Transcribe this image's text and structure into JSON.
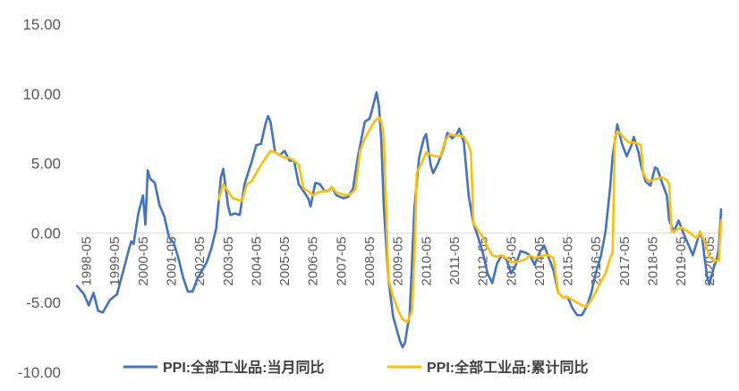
{
  "chart_data": {
    "type": "line",
    "title": "",
    "xlabel": "",
    "ylabel": "",
    "ylim": [
      -10,
      15
    ],
    "yticks": [
      15,
      10,
      5,
      0,
      -5,
      -10
    ],
    "ytick_labels": [
      "15.00",
      "10.00",
      "5.00",
      "0.00",
      "-5.00",
      "-10.00"
    ],
    "x_tick_labels": [
      "1998-05",
      "1999-05",
      "2000-05",
      "2001-05",
      "2002-05",
      "2003-05",
      "2004-05",
      "2005-05",
      "2006-05",
      "2007-05",
      "2008-05",
      "2009-05",
      "2010-05",
      "2011-05",
      "2012-05",
      "2013-05",
      "2014-05",
      "2015-05",
      "2016-05",
      "2017-05",
      "2018-05",
      "2019-05",
      "2020-05"
    ],
    "x_start": "1998-01",
    "x_end": "2020-10",
    "grid": "none",
    "legend_position": "bottom",
    "series": [
      {
        "name": "PPI:全部工业品:当月同比",
        "color": "#4472C4",
        "points": [
          [
            "1998-01",
            -3.8
          ],
          [
            "1998-04",
            -4.4
          ],
          [
            "1998-06",
            -5.2
          ],
          [
            "1998-08",
            -4.3
          ],
          [
            "1998-10",
            -5.6
          ],
          [
            "1998-12",
            -5.7
          ],
          [
            "1999-03",
            -4.8
          ],
          [
            "1999-06",
            -4.4
          ],
          [
            "1999-09",
            -2.5
          ],
          [
            "1999-11",
            -1.2
          ],
          [
            "1999-12",
            -0.6
          ],
          [
            "2000-01",
            -0.8
          ],
          [
            "2000-03",
            1.4
          ],
          [
            "2000-05",
            2.7
          ],
          [
            "2000-06",
            0.6
          ],
          [
            "2000-07",
            4.5
          ],
          [
            "2000-08",
            3.9
          ],
          [
            "2000-10",
            3.6
          ],
          [
            "2000-12",
            2.0
          ],
          [
            "2001-02",
            1.2
          ],
          [
            "2001-04",
            -0.3
          ],
          [
            "2001-06",
            -0.7
          ],
          [
            "2001-08",
            -1.8
          ],
          [
            "2001-10",
            -3.2
          ],
          [
            "2001-12",
            -4.2
          ],
          [
            "2002-02",
            -4.2
          ],
          [
            "2002-04",
            -3.3
          ],
          [
            "2002-06",
            -2.7
          ],
          [
            "2002-08",
            -2.1
          ],
          [
            "2002-10",
            -1.1
          ],
          [
            "2002-12",
            0.3
          ],
          [
            "2003-02",
            4.0
          ],
          [
            "2003-03",
            4.6
          ],
          [
            "2003-05",
            2.0
          ],
          [
            "2003-06",
            1.3
          ],
          [
            "2003-08",
            1.4
          ],
          [
            "2003-10",
            1.3
          ],
          [
            "2003-12",
            3.5
          ],
          [
            "2004-03",
            5.1
          ],
          [
            "2004-05",
            6.3
          ],
          [
            "2004-07",
            6.4
          ],
          [
            "2004-09",
            7.9
          ],
          [
            "2004-10",
            8.4
          ],
          [
            "2004-11",
            8.0
          ],
          [
            "2005-01",
            5.8
          ],
          [
            "2005-03",
            5.6
          ],
          [
            "2005-05",
            5.9
          ],
          [
            "2005-07",
            5.2
          ],
          [
            "2005-09",
            5.2
          ],
          [
            "2005-11",
            3.5
          ],
          [
            "2006-01",
            3.0
          ],
          [
            "2006-03",
            2.5
          ],
          [
            "2006-04",
            1.9
          ],
          [
            "2006-06",
            3.6
          ],
          [
            "2006-08",
            3.5
          ],
          [
            "2006-10",
            3.0
          ],
          [
            "2006-12",
            3.1
          ],
          [
            "2007-01",
            3.3
          ],
          [
            "2007-03",
            2.7
          ],
          [
            "2007-06",
            2.5
          ],
          [
            "2007-08",
            2.6
          ],
          [
            "2007-10",
            3.2
          ],
          [
            "2007-12",
            5.4
          ],
          [
            "2008-03",
            8.0
          ],
          [
            "2008-05",
            8.2
          ],
          [
            "2008-06",
            8.8
          ],
          [
            "2008-08",
            10.1
          ],
          [
            "2008-09",
            9.1
          ],
          [
            "2008-10",
            6.6
          ],
          [
            "2008-11",
            2.0
          ],
          [
            "2009-01",
            -3.3
          ],
          [
            "2009-03",
            -6.0
          ],
          [
            "2009-06",
            -7.8
          ],
          [
            "2009-07",
            -8.2
          ],
          [
            "2009-08",
            -7.9
          ],
          [
            "2009-10",
            -5.8
          ],
          [
            "2009-11",
            -2.1
          ],
          [
            "2009-12",
            1.7
          ],
          [
            "2010-02",
            5.4
          ],
          [
            "2010-04",
            6.8
          ],
          [
            "2010-05",
            7.1
          ],
          [
            "2010-07",
            4.8
          ],
          [
            "2010-08",
            4.3
          ],
          [
            "2010-10",
            5.0
          ],
          [
            "2010-12",
            5.9
          ],
          [
            "2011-02",
            7.2
          ],
          [
            "2011-04",
            6.8
          ],
          [
            "2011-06",
            7.1
          ],
          [
            "2011-07",
            7.5
          ],
          [
            "2011-09",
            6.5
          ],
          [
            "2011-11",
            2.7
          ],
          [
            "2012-01",
            0.7
          ],
          [
            "2012-03",
            -0.3
          ],
          [
            "2012-05",
            -1.4
          ],
          [
            "2012-07",
            -2.9
          ],
          [
            "2012-09",
            -3.6
          ],
          [
            "2012-11",
            -2.2
          ],
          [
            "2013-01",
            -1.6
          ],
          [
            "2013-03",
            -1.9
          ],
          [
            "2013-05",
            -2.9
          ],
          [
            "2013-07",
            -2.3
          ],
          [
            "2013-09",
            -1.3
          ],
          [
            "2013-11",
            -1.4
          ],
          [
            "2014-01",
            -1.6
          ],
          [
            "2014-03",
            -2.3
          ],
          [
            "2014-05",
            -1.4
          ],
          [
            "2014-07",
            -0.9
          ],
          [
            "2014-09",
            -1.8
          ],
          [
            "2014-11",
            -2.7
          ],
          [
            "2015-01",
            -4.3
          ],
          [
            "2015-03",
            -4.6
          ],
          [
            "2015-05",
            -4.6
          ],
          [
            "2015-07",
            -5.4
          ],
          [
            "2015-09",
            -5.9
          ],
          [
            "2015-11",
            -5.9
          ],
          [
            "2016-01",
            -5.3
          ],
          [
            "2016-03",
            -4.3
          ],
          [
            "2016-05",
            -2.8
          ],
          [
            "2016-07",
            -1.7
          ],
          [
            "2016-09",
            0.1
          ],
          [
            "2016-11",
            3.3
          ],
          [
            "2016-12",
            5.5
          ],
          [
            "2017-02",
            7.8
          ],
          [
            "2017-04",
            6.4
          ],
          [
            "2017-06",
            5.5
          ],
          [
            "2017-08",
            6.3
          ],
          [
            "2017-09",
            6.9
          ],
          [
            "2017-11",
            5.8
          ],
          [
            "2017-12",
            4.9
          ],
          [
            "2018-02",
            3.7
          ],
          [
            "2018-04",
            3.4
          ],
          [
            "2018-06",
            4.7
          ],
          [
            "2018-07",
            4.6
          ],
          [
            "2018-09",
            3.6
          ],
          [
            "2018-11",
            2.7
          ],
          [
            "2018-12",
            0.9
          ],
          [
            "2019-02",
            0.1
          ],
          [
            "2019-04",
            0.9
          ],
          [
            "2019-06",
            0.0
          ],
          [
            "2019-08",
            -0.8
          ],
          [
            "2019-10",
            -1.6
          ],
          [
            "2019-12",
            -0.5
          ],
          [
            "2020-01",
            0.1
          ],
          [
            "2020-02",
            -0.4
          ],
          [
            "2020-04",
            -3.1
          ],
          [
            "2020-05",
            -3.7
          ],
          [
            "2020-07",
            -2.4
          ],
          [
            "2020-08",
            -2.0
          ],
          [
            "2020-09",
            -1.1
          ],
          [
            "2020-10",
            1.7
          ]
        ]
      },
      {
        "name": "PPI:全部工业品:累计同比",
        "color": "#FFC000",
        "points": [
          [
            "2003-01",
            2.4
          ],
          [
            "2003-03",
            3.5
          ],
          [
            "2003-05",
            3.0
          ],
          [
            "2003-07",
            2.5
          ],
          [
            "2003-09",
            2.4
          ],
          [
            "2003-11",
            2.3
          ],
          [
            "2004-01",
            3.5
          ],
          [
            "2004-03",
            3.7
          ],
          [
            "2004-05",
            4.3
          ],
          [
            "2004-07",
            4.9
          ],
          [
            "2004-09",
            5.4
          ],
          [
            "2004-11",
            5.9
          ],
          [
            "2005-01",
            5.8
          ],
          [
            "2005-03",
            5.6
          ],
          [
            "2005-05",
            5.4
          ],
          [
            "2005-07",
            5.4
          ],
          [
            "2005-09",
            5.2
          ],
          [
            "2005-11",
            4.9
          ],
          [
            "2006-01",
            3.2
          ],
          [
            "2006-03",
            3.0
          ],
          [
            "2006-05",
            2.7
          ],
          [
            "2006-07",
            2.9
          ],
          [
            "2006-09",
            3.0
          ],
          [
            "2006-11",
            3.0
          ],
          [
            "2007-01",
            3.3
          ],
          [
            "2007-03",
            2.9
          ],
          [
            "2007-05",
            2.8
          ],
          [
            "2007-07",
            2.7
          ],
          [
            "2007-09",
            2.8
          ],
          [
            "2007-11",
            3.1
          ],
          [
            "2008-01",
            5.9
          ],
          [
            "2008-03",
            6.8
          ],
          [
            "2008-05",
            7.4
          ],
          [
            "2008-07",
            8.0
          ],
          [
            "2008-09",
            8.3
          ],
          [
            "2008-10",
            8.0
          ],
          [
            "2008-11",
            6.9
          ],
          [
            "2008-12",
            2.0
          ],
          [
            "2009-01",
            -3.3
          ],
          [
            "2009-03",
            -4.6
          ],
          [
            "2009-05",
            -5.5
          ],
          [
            "2009-07",
            -6.2
          ],
          [
            "2009-09",
            -6.4
          ],
          [
            "2009-11",
            -5.6
          ],
          [
            "2009-12",
            -2.0
          ],
          [
            "2010-01",
            4.3
          ],
          [
            "2010-03",
            5.0
          ],
          [
            "2010-05",
            5.8
          ],
          [
            "2010-07",
            5.6
          ],
          [
            "2010-09",
            5.5
          ],
          [
            "2010-11",
            5.5
          ],
          [
            "2011-01",
            6.6
          ],
          [
            "2011-03",
            7.1
          ],
          [
            "2011-05",
            7.0
          ],
          [
            "2011-07",
            7.0
          ],
          [
            "2011-09",
            6.9
          ],
          [
            "2011-11",
            6.3
          ],
          [
            "2011-12",
            5.8
          ],
          [
            "2012-01",
            0.7
          ],
          [
            "2012-03",
            0.2
          ],
          [
            "2012-05",
            -0.3
          ],
          [
            "2012-07",
            -1.0
          ],
          [
            "2012-09",
            -1.6
          ],
          [
            "2012-11",
            -1.7
          ],
          [
            "2013-01",
            -1.6
          ],
          [
            "2013-03",
            -1.8
          ],
          [
            "2013-05",
            -2.1
          ],
          [
            "2013-07",
            -2.1
          ],
          [
            "2013-09",
            -2.0
          ],
          [
            "2013-11",
            -1.9
          ],
          [
            "2014-01",
            -1.6
          ],
          [
            "2014-03",
            -1.8
          ],
          [
            "2014-05",
            -1.7
          ],
          [
            "2014-07",
            -1.6
          ],
          [
            "2014-09",
            -1.6
          ],
          [
            "2014-11",
            -1.8
          ],
          [
            "2015-01",
            -4.3
          ],
          [
            "2015-03",
            -4.6
          ],
          [
            "2015-05",
            -4.6
          ],
          [
            "2015-07",
            -4.8
          ],
          [
            "2015-09",
            -5.0
          ],
          [
            "2015-11",
            -5.2
          ],
          [
            "2016-01",
            -5.3
          ],
          [
            "2016-03",
            -4.8
          ],
          [
            "2016-05",
            -4.2
          ],
          [
            "2016-07",
            -3.5
          ],
          [
            "2016-09",
            -2.9
          ],
          [
            "2016-11",
            -1.8
          ],
          [
            "2016-12",
            -1.4
          ],
          [
            "2017-01",
            6.9
          ],
          [
            "2017-02",
            7.3
          ],
          [
            "2017-03",
            7.2
          ],
          [
            "2017-05",
            6.8
          ],
          [
            "2017-07",
            6.5
          ],
          [
            "2017-09",
            6.5
          ],
          [
            "2017-11",
            6.4
          ],
          [
            "2017-12",
            6.3
          ],
          [
            "2018-01",
            4.3
          ],
          [
            "2018-03",
            3.7
          ],
          [
            "2018-05",
            3.8
          ],
          [
            "2018-07",
            3.9
          ],
          [
            "2018-09",
            4.0
          ],
          [
            "2018-11",
            3.8
          ],
          [
            "2018-12",
            3.5
          ],
          [
            "2019-01",
            0.1
          ],
          [
            "2019-03",
            0.2
          ],
          [
            "2019-05",
            0.4
          ],
          [
            "2019-07",
            0.2
          ],
          [
            "2019-09",
            0.0
          ],
          [
            "2019-11",
            -0.3
          ],
          [
            "2019-12",
            -0.3
          ],
          [
            "2020-01",
            0.1
          ],
          [
            "2020-03",
            -0.6
          ],
          [
            "2020-05",
            -1.7
          ],
          [
            "2020-07",
            -2.0
          ],
          [
            "2020-09",
            -2.0
          ],
          [
            "2020-10",
            0.9
          ]
        ]
      }
    ]
  }
}
